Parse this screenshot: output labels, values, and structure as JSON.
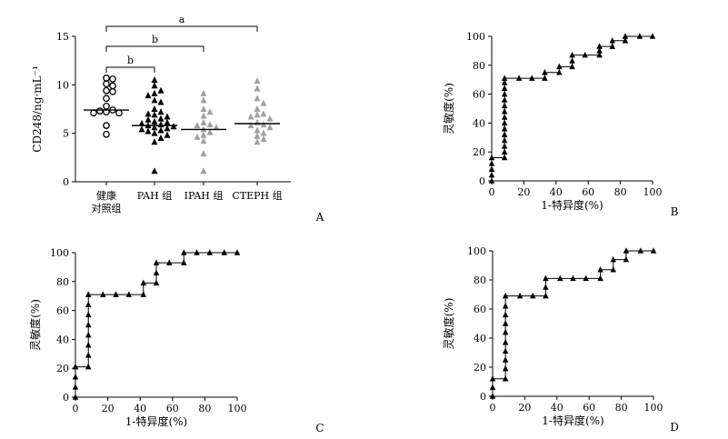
{
  "chart_data": [
    {
      "panel": "A",
      "type": "scatter",
      "ylabel": "CD248/ng·mL⁻¹",
      "ylim": [
        0,
        15
      ],
      "yticks": [
        0,
        5,
        10,
        15
      ],
      "categories": [
        "健康对照组",
        "PAH 组",
        "IPAH 组",
        "CTEPH 组"
      ],
      "category_lines": [
        [
          "健康",
          "对照组"
        ],
        [
          "PAH 组"
        ],
        [
          "IPAH 组"
        ],
        [
          "CTEPH 组"
        ]
      ],
      "series": [
        {
          "marker": "open-circle",
          "color": "#000000",
          "median": 7.4,
          "values": [
            10.7,
            10.6,
            10.1,
            9.9,
            9.4,
            9.3,
            8.6,
            7.8,
            7.4,
            7.3,
            7.2,
            7.1,
            7.1,
            5.8,
            4.9
          ]
        },
        {
          "marker": "filled-triangle",
          "color": "#000000",
          "median": 5.8,
          "values": [
            10.5,
            9.9,
            9.4,
            9.1,
            8.9,
            8.4,
            8.2,
            7.5,
            7.2,
            7.0,
            6.9,
            6.7,
            6.5,
            6.4,
            6.2,
            6.1,
            6.0,
            5.9,
            5.8,
            5.7,
            5.6,
            5.5,
            5.4,
            5.3,
            5.2,
            5.0,
            4.8,
            4.5,
            4.1,
            1.1
          ]
        },
        {
          "marker": "filled-triangle",
          "color": "#a0a0a0",
          "median": 5.4,
          "values": [
            9.1,
            8.4,
            7.5,
            7.2,
            6.8,
            6.1,
            5.9,
            5.8,
            5.6,
            5.4,
            5.1,
            4.8,
            4.6,
            4.2,
            2.9,
            1.1
          ]
        },
        {
          "marker": "filled-triangle",
          "color": "#a0a0a0",
          "median": 6.0,
          "values": [
            10.4,
            9.6,
            8.6,
            8.1,
            7.5,
            7.0,
            6.9,
            6.7,
            6.5,
            6.1,
            5.9,
            5.8,
            5.6,
            5.3,
            5.0,
            4.7,
            4.4,
            4.1
          ]
        }
      ],
      "brackets": [
        {
          "from": 0,
          "to": 3,
          "label": "a"
        },
        {
          "from": 0,
          "to": 2,
          "label": "b"
        },
        {
          "from": 0,
          "to": 1,
          "label": "b"
        }
      ]
    },
    {
      "panel": "B",
      "type": "line",
      "xlabel": "1-特异度(%)",
      "ylabel": "灵敏度(%)",
      "xlim": [
        0,
        100
      ],
      "ylim": [
        0,
        100
      ],
      "ticks": [
        0,
        20,
        40,
        60,
        80,
        100
      ],
      "points": [
        [
          0,
          0
        ],
        [
          0,
          4
        ],
        [
          0,
          8
        ],
        [
          0,
          12
        ],
        [
          0,
          16
        ],
        [
          8,
          16
        ],
        [
          8,
          20
        ],
        [
          8,
          24
        ],
        [
          8,
          28
        ],
        [
          8,
          32
        ],
        [
          8,
          36
        ],
        [
          8,
          40
        ],
        [
          8,
          44
        ],
        [
          8,
          48
        ],
        [
          8,
          52
        ],
        [
          8,
          56
        ],
        [
          8,
          60
        ],
        [
          8,
          64
        ],
        [
          8,
          68
        ],
        [
          8,
          71
        ],
        [
          17,
          71
        ],
        [
          25,
          71
        ],
        [
          33,
          71
        ],
        [
          33,
          75
        ],
        [
          42,
          75
        ],
        [
          42,
          79
        ],
        [
          50,
          79
        ],
        [
          50,
          83
        ],
        [
          50,
          87
        ],
        [
          58,
          87
        ],
        [
          67,
          87
        ],
        [
          67,
          90
        ],
        [
          67,
          93
        ],
        [
          75,
          93
        ],
        [
          75,
          97
        ],
        [
          83,
          97
        ],
        [
          83,
          100
        ],
        [
          92,
          100
        ],
        [
          100,
          100
        ]
      ]
    },
    {
      "panel": "C",
      "type": "line",
      "xlabel": "1-特异度(%)",
      "ylabel": "灵敏度(%)",
      "xlim": [
        0,
        100
      ],
      "ylim": [
        0,
        100
      ],
      "ticks": [
        0,
        20,
        40,
        60,
        80,
        100
      ],
      "points": [
        [
          0,
          0
        ],
        [
          0,
          7
        ],
        [
          0,
          14
        ],
        [
          0,
          21
        ],
        [
          8,
          21
        ],
        [
          8,
          29
        ],
        [
          8,
          36
        ],
        [
          8,
          43
        ],
        [
          8,
          50
        ],
        [
          8,
          57
        ],
        [
          8,
          64
        ],
        [
          8,
          71
        ],
        [
          17,
          71
        ],
        [
          25,
          71
        ],
        [
          33,
          71
        ],
        [
          42,
          71
        ],
        [
          42,
          79
        ],
        [
          50,
          79
        ],
        [
          50,
          86
        ],
        [
          50,
          93
        ],
        [
          58,
          93
        ],
        [
          67,
          93
        ],
        [
          67,
          100
        ],
        [
          75,
          100
        ],
        [
          83,
          100
        ],
        [
          92,
          100
        ],
        [
          100,
          100
        ]
      ]
    },
    {
      "panel": "D",
      "type": "line",
      "xlabel": "1-特异度(%)",
      "ylabel": "灵敏度(%)",
      "xlim": [
        0,
        100
      ],
      "ylim": [
        0,
        100
      ],
      "ticks": [
        0,
        20,
        40,
        60,
        80,
        100
      ],
      "points": [
        [
          0,
          0
        ],
        [
          0,
          6
        ],
        [
          0,
          12
        ],
        [
          8,
          12
        ],
        [
          8,
          19
        ],
        [
          8,
          25
        ],
        [
          8,
          31
        ],
        [
          8,
          37
        ],
        [
          8,
          44
        ],
        [
          8,
          50
        ],
        [
          8,
          56
        ],
        [
          8,
          62
        ],
        [
          8,
          69
        ],
        [
          17,
          69
        ],
        [
          25,
          69
        ],
        [
          33,
          69
        ],
        [
          33,
          75
        ],
        [
          33,
          81
        ],
        [
          42,
          81
        ],
        [
          50,
          81
        ],
        [
          58,
          81
        ],
        [
          67,
          81
        ],
        [
          67,
          87
        ],
        [
          75,
          87
        ],
        [
          75,
          94
        ],
        [
          83,
          94
        ],
        [
          83,
          100
        ],
        [
          92,
          100
        ],
        [
          100,
          100
        ]
      ]
    }
  ]
}
